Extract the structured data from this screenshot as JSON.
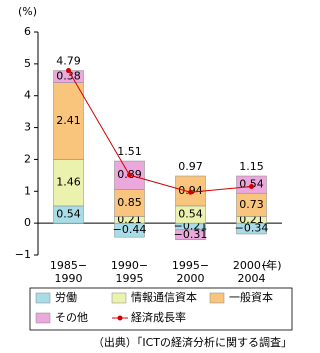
{
  "chart_data": {
    "type": "bar",
    "stacked": true,
    "y_label": "(%)",
    "x_unit": "(年)",
    "categories": [
      [
        "1985−",
        "1990"
      ],
      [
        "1990−",
        "1995"
      ],
      [
        "1995−",
        "2000"
      ],
      [
        "2000−",
        "2004"
      ]
    ],
    "series": [
      {
        "name": "労働",
        "color": "#a8dce6",
        "values": [
          0.54,
          -0.44,
          -0.21,
          -0.34
        ],
        "value_labels": [
          "0.54",
          "−0.44",
          "−0.21",
          "−0.34"
        ]
      },
      {
        "name": "情報通信資本",
        "color": "#eaf2ae",
        "values": [
          1.46,
          0.21,
          0.54,
          0.21
        ]
      },
      {
        "name": "一般資本",
        "color": "#f9c47c",
        "values": [
          2.41,
          0.85,
          0.94,
          0.73
        ]
      },
      {
        "name": "その他",
        "color": "#eaa8dc",
        "values": [
          0.38,
          0.89,
          -0.31,
          0.54
        ],
        "value_labels": [
          "0.38",
          "0.89",
          "−0.31",
          "0.54"
        ]
      },
      {
        "name": "経済成長率",
        "type": "line",
        "color": "#d40000",
        "values": [
          4.79,
          1.51,
          0.97,
          1.15
        ]
      }
    ],
    "ylim": [
      -1,
      6
    ],
    "yticks": [
      {
        "value": -1,
        "label": "−1"
      },
      0,
      1,
      2,
      3,
      4,
      5,
      6
    ],
    "source": "（出典）「ICTの経済分析に関する調査」"
  }
}
